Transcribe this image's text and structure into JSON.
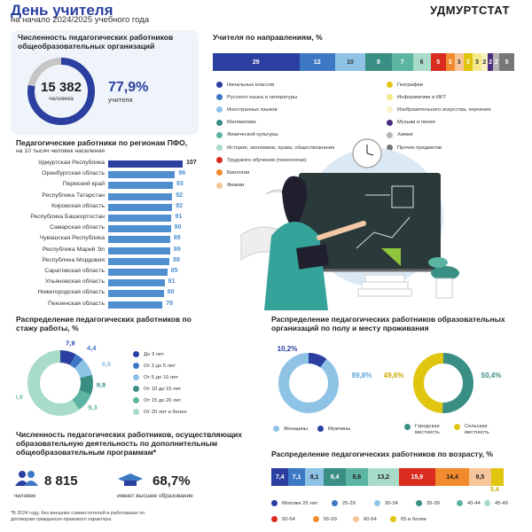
{
  "header": {
    "title": "День учителя",
    "subtitle": "на начало 2024/2025 учебного года",
    "brand": "УДМУРТСТАТ"
  },
  "staff": {
    "title": "Численность педагогических работников общеобразовательных организаций",
    "count": "15 382",
    "count_label": "человека",
    "share": "77,9%",
    "share_label": "учителя",
    "share_value": 77.9
  },
  "regions": {
    "title": "Педагогические работники по регионам ПФО,",
    "subtitle": "на 10 тысяч человек населения"
  },
  "directions": {
    "title": "Учителя по направлениям, %"
  },
  "seniority": {
    "title": "Распределение педагогических работников по стажу работы, %"
  },
  "gender": {
    "title": "Распределение педагогических работников образовательных организаций по полу и месту проживания"
  },
  "additional": {
    "title": "Численность педагогических работников, осуществляющих образовательную деятельность по дополнительным общеобразовательным программам*",
    "count": "8 815",
    "count_label": "человек",
    "share": "68,7%",
    "share_label": "имеют высшее образование"
  },
  "age": {
    "title": "Распределение педагогических работников по возрасту, %"
  },
  "footnote": "*В 2024 году, без внешних совместителей и работавших по договорам гражданско-правового характера.",
  "colors": {
    "navy": "#2a3fa0",
    "teal": "#3a8f84",
    "lightgray": "#c6c6c6"
  },
  "chart_data": [
    {
      "type": "bar",
      "orientation": "horizontal",
      "title": "Педагогические работники по регионам ПФО,",
      "subtitle": "на 10 тысяч человек населения",
      "categories": [
        "Удмуртская Республика",
        "Оренбургская область",
        "Пермский край",
        "Республика Татарстан",
        "Кировская область",
        "Республика Башкортостан",
        "Самарская область",
        "Чувашская Республика",
        "Республика Марий Эл",
        "Республика Мордовия",
        "Саратовская область",
        "Ульяновская область",
        "Нижегородская область",
        "Пензенская область"
      ],
      "values": [
        107,
        96,
        93,
        92,
        92,
        91,
        90,
        89,
        89,
        88,
        85,
        81,
        80,
        78
      ]
    },
    {
      "type": "bar",
      "orientation": "stacked-horizontal",
      "title": "Учителя по направлениям, %",
      "series": [
        {
          "name": "Начальных классов",
          "value": 29,
          "label": "29",
          "color": "#2a3fa0"
        },
        {
          "name": "Русского языка и литературы",
          "value": 12,
          "label": "12",
          "color": "#3d78c4"
        },
        {
          "name": "Иностранных языков",
          "value": 10,
          "label": "10",
          "color": "#8fc3e6"
        },
        {
          "name": "Математики",
          "value": 9,
          "label": "9",
          "color": "#3a8f84"
        },
        {
          "name": "Физической культуры",
          "value": 7,
          "label": "7",
          "color": "#5bb5a2"
        },
        {
          "name": "Истории, экономики, права, обществознания",
          "value": 6,
          "label": "6",
          "color": "#a8dcc8"
        },
        {
          "name": "Трудового обучения (технологии)",
          "value": 5,
          "label": "5",
          "color": "#d92b1e"
        },
        {
          "name": "Биологии",
          "value": 3,
          "label": "3",
          "color": "#f28a2e"
        },
        {
          "name": "Физики",
          "value": 3,
          "label": "3",
          "color": "#f6c59a"
        },
        {
          "name": "Географии",
          "value": 3,
          "label": "3",
          "color": "#e0c60f"
        },
        {
          "name": "Информатики и ИКТ",
          "value": 3,
          "label": "3",
          "color": "#f3e98a"
        },
        {
          "name": "Изобразительного искусства, черчения",
          "value": 2,
          "label": "2",
          "color": "#f8f2c2"
        },
        {
          "name": "Музыки и пения",
          "value": 2,
          "label": "2",
          "color": "#4a2d7f"
        },
        {
          "name": "Химии",
          "value": 2,
          "label": "2",
          "color": "#b3b3b3"
        },
        {
          "name": "Прочих предметов",
          "value": 5,
          "label": "5",
          "color": "#777777"
        }
      ]
    },
    {
      "type": "pie",
      "title": "Распределение педагогических работников по стажу работы, %",
      "series": [
        {
          "name": "До 3 лет",
          "value": 7.9,
          "label": "7,9",
          "color": "#2a3fa0"
        },
        {
          "name": "От 3 до 5 лет",
          "value": 4.4,
          "label": "4,4",
          "color": "#3d78c4"
        },
        {
          "name": "От 5 до 10 лет",
          "value": 8.6,
          "label": "8,6",
          "color": "#8fc3e6"
        },
        {
          "name": "От 10 до 15 лет",
          "value": 9.9,
          "label": "9,9",
          "color": "#3a8f84"
        },
        {
          "name": "От 15 до 20 лет",
          "value": 9.3,
          "label": "9,3",
          "color": "#5bb5a2"
        },
        {
          "name": "От 20 лет и более",
          "value": 59.9,
          "label": "59,9",
          "color": "#a8dcc8"
        }
      ]
    },
    {
      "type": "pie",
      "title": "по полу",
      "series": [
        {
          "name": "Женщины",
          "value": 89.8,
          "label": "89,8%",
          "color": "#8fc3e6"
        },
        {
          "name": "Мужчины",
          "value": 10.2,
          "label": "10,2%",
          "color": "#2a3fa0"
        }
      ]
    },
    {
      "type": "pie",
      "title": "по месту проживания",
      "series": [
        {
          "name": "Сельская местность",
          "value": 49.6,
          "label": "49,6%",
          "color": "#e0c60f"
        },
        {
          "name": "Городская местность",
          "value": 50.4,
          "label": "50,4%",
          "color": "#3a8f84"
        }
      ]
    },
    {
      "type": "bar",
      "orientation": "stacked-horizontal",
      "title": "Распределение педагогических работников по возрасту, %",
      "series": [
        {
          "name": "Моложе 25 лет",
          "value": 7.4,
          "label": "7,4",
          "color": "#2a3fa0"
        },
        {
          "name": "25-29",
          "value": 7.1,
          "label": "7,1",
          "color": "#3d78c4"
        },
        {
          "name": "30-34",
          "value": 8.1,
          "label": "8,1",
          "color": "#8fc3e6"
        },
        {
          "name": "35-39",
          "value": 9.4,
          "label": "9,4",
          "color": "#3a8f84"
        },
        {
          "name": "40-44",
          "value": 9.6,
          "label": "9,6",
          "color": "#5bb5a2"
        },
        {
          "name": "45-49",
          "value": 13.2,
          "label": "13,2",
          "color": "#a8dcc8"
        },
        {
          "name": "50-54",
          "value": 15.9,
          "label": "15,9",
          "color": "#d92b1e"
        },
        {
          "name": "55-59",
          "value": 14.4,
          "label": "14,4",
          "color": "#f28a2e"
        },
        {
          "name": "60-64",
          "value": 9.5,
          "label": "9,5",
          "color": "#f6c59a"
        },
        {
          "name": "65 и более",
          "value": 5.4,
          "label": "5,4",
          "color": "#e0c60f"
        }
      ]
    }
  ]
}
